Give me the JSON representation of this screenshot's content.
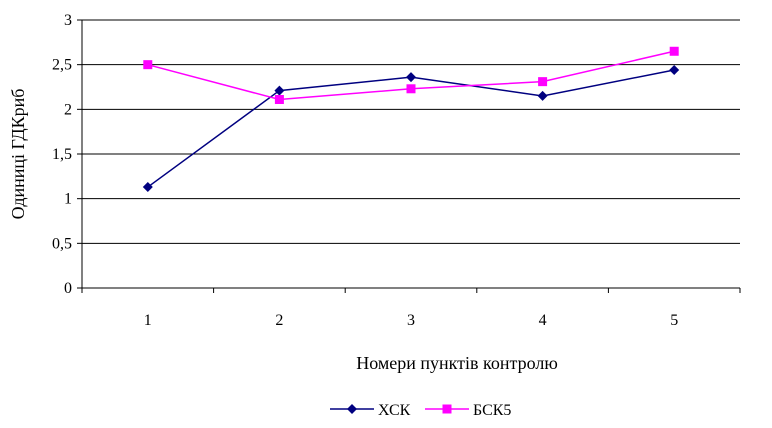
{
  "chart_data": {
    "type": "line",
    "categories": [
      "1",
      "2",
      "3",
      "4",
      "5"
    ],
    "series": [
      {
        "name": "ХСК",
        "values": [
          1.13,
          2.21,
          2.36,
          2.15,
          2.44
        ],
        "color": "#000080",
        "marker": "diamond"
      },
      {
        "name": "БСК5",
        "values": [
          2.5,
          2.11,
          2.23,
          2.31,
          2.65
        ],
        "color": "#ff00ff",
        "marker": "square"
      }
    ],
    "ylim": [
      0,
      3
    ],
    "yticks": [
      "0",
      "0,5",
      "1",
      "1,5",
      "2",
      "2,5",
      "3"
    ],
    "ytick_values": [
      0,
      0.5,
      1,
      1.5,
      2,
      2.5,
      3
    ],
    "xlabel": "Номери пунктів контролю",
    "ylabel": "Одиниці ГДКриб",
    "grid": true,
    "legend": "bottom"
  }
}
